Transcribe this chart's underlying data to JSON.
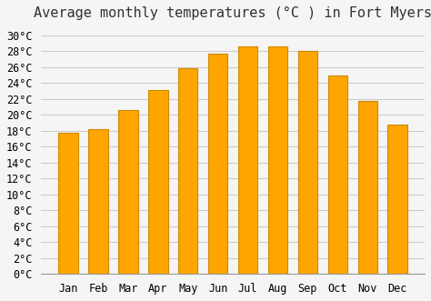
{
  "title": "Average monthly temperatures (°C ) in Fort Myers",
  "months": [
    "Jan",
    "Feb",
    "Mar",
    "Apr",
    "May",
    "Jun",
    "Jul",
    "Aug",
    "Sep",
    "Oct",
    "Nov",
    "Dec"
  ],
  "values": [
    17.8,
    18.2,
    20.6,
    23.1,
    25.9,
    27.7,
    28.6,
    28.6,
    28.0,
    25.0,
    21.8,
    18.8
  ],
  "bar_color": "#FFA500",
  "bar_edge_color": "#CC8800",
  "background_color": "#f5f5f5",
  "grid_color": "#cccccc",
  "ylim": [
    0,
    31
  ],
  "ytick_step": 2,
  "title_fontsize": 11,
  "tick_fontsize": 8.5,
  "font_family": "monospace"
}
